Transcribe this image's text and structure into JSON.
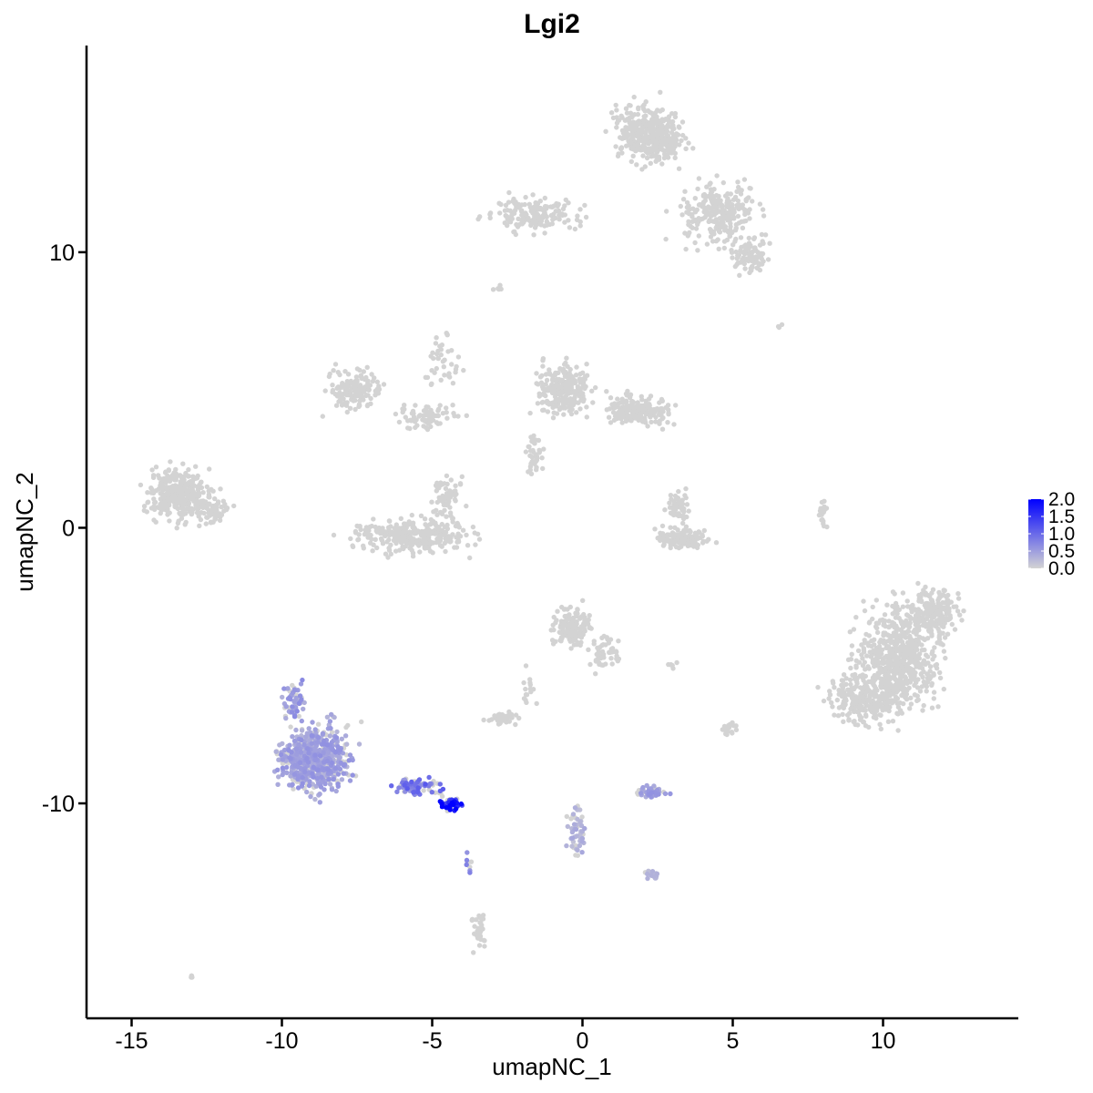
{
  "chart_data": {
    "type": "scatter",
    "title": "Lgi2",
    "xlabel": "umapNC_1",
    "ylabel": "umapNC_2",
    "xlim": [
      -16.5,
      14.5
    ],
    "ylim": [
      -17.8,
      17.5
    ],
    "xticks": [
      -15,
      -10,
      -5,
      0,
      5,
      10
    ],
    "xtick_labels": [
      "-15",
      "-10",
      "-5",
      "0",
      "5",
      "10"
    ],
    "yticks": [
      -10,
      0,
      10
    ],
    "ytick_labels": [
      "-10",
      "0",
      "10"
    ],
    "grid": false,
    "legend": {
      "position": "right",
      "type": "colorbar",
      "labels": [
        "2.0",
        "1.5",
        "1.0",
        "0.5",
        "0.0"
      ],
      "values": [
        2.0,
        1.5,
        1.0,
        0.5,
        0.0
      ],
      "low_color": "#d3d3d3",
      "high_color": "#0000ff"
    },
    "background_color": "#d3d3d3",
    "clusters": [
      {
        "cx": 2.2,
        "cy": 14.3,
        "sx": 1.0,
        "sy": 0.9,
        "n": 420,
        "expr": 0
      },
      {
        "cx": 4.6,
        "cy": 11.3,
        "sx": 1.3,
        "sy": 1.0,
        "n": 260,
        "expr": 0
      },
      {
        "cx": -1.6,
        "cy": 11.4,
        "sx": 1.3,
        "sy": 0.5,
        "n": 160,
        "expr": 0
      },
      {
        "cx": 5.6,
        "cy": 9.8,
        "sx": 0.5,
        "sy": 0.5,
        "n": 90,
        "expr": 0
      },
      {
        "cx": -7.6,
        "cy": 5.0,
        "sx": 0.8,
        "sy": 0.6,
        "n": 150,
        "expr": 0
      },
      {
        "cx": -5.2,
        "cy": 4.0,
        "sx": 0.9,
        "sy": 0.5,
        "n": 70,
        "expr": 0
      },
      {
        "cx": -4.6,
        "cy": 6.0,
        "sx": 0.5,
        "sy": 0.9,
        "n": 40,
        "expr": 0
      },
      {
        "cx": -5.6,
        "cy": -0.3,
        "sx": 1.7,
        "sy": 0.5,
        "n": 320,
        "expr": 0
      },
      {
        "cx": -4.5,
        "cy": 1.1,
        "sx": 0.4,
        "sy": 0.7,
        "n": 60,
        "expr": 0
      },
      {
        "cx": -0.6,
        "cy": 5.0,
        "sx": 0.8,
        "sy": 0.8,
        "n": 260,
        "expr": 0
      },
      {
        "cx": 1.9,
        "cy": 4.3,
        "sx": 1.0,
        "sy": 0.5,
        "n": 200,
        "expr": 0
      },
      {
        "cx": -1.6,
        "cy": 2.5,
        "sx": 0.3,
        "sy": 0.8,
        "n": 40,
        "expr": 0
      },
      {
        "cx": -13.4,
        "cy": 1.2,
        "sx": 0.9,
        "sy": 0.8,
        "n": 340,
        "expr": 0
      },
      {
        "cx": -12.3,
        "cy": 0.6,
        "sx": 0.5,
        "sy": 0.5,
        "n": 60,
        "expr": 0
      },
      {
        "cx": 3.3,
        "cy": -0.4,
        "sx": 0.8,
        "sy": 0.3,
        "n": 120,
        "expr": 0
      },
      {
        "cx": 3.2,
        "cy": 0.8,
        "sx": 0.3,
        "sy": 0.5,
        "n": 60,
        "expr": 0
      },
      {
        "cx": 8.0,
        "cy": 0.5,
        "sx": 0.15,
        "sy": 0.6,
        "n": 18,
        "expr": 0
      },
      {
        "cx": 10.5,
        "cy": -4.7,
        "sx": 1.2,
        "sy": 1.5,
        "n": 650,
        "expr": 0
      },
      {
        "cx": 9.4,
        "cy": -6.2,
        "sx": 1.0,
        "sy": 0.8,
        "n": 250,
        "expr": 0
      },
      {
        "cx": 11.6,
        "cy": -3.0,
        "sx": 0.8,
        "sy": 0.8,
        "n": 200,
        "expr": 0
      },
      {
        "cx": -0.4,
        "cy": -3.6,
        "sx": 0.6,
        "sy": 0.7,
        "n": 160,
        "expr": 0
      },
      {
        "cx": 0.7,
        "cy": -4.5,
        "sx": 0.4,
        "sy": 0.6,
        "n": 50,
        "expr": 0
      },
      {
        "cx": -2.6,
        "cy": -6.9,
        "sx": 0.4,
        "sy": 0.2,
        "n": 45,
        "expr": 0
      },
      {
        "cx": -1.8,
        "cy": -5.8,
        "sx": 0.2,
        "sy": 0.5,
        "n": 15,
        "expr": 0
      },
      {
        "cx": -8.9,
        "cy": -8.4,
        "sx": 1.0,
        "sy": 1.0,
        "n": 620,
        "expr": 0.45
      },
      {
        "cx": -9.6,
        "cy": -6.3,
        "sx": 0.3,
        "sy": 0.6,
        "n": 60,
        "expr": 0.5
      },
      {
        "cx": -5.5,
        "cy": -9.4,
        "sx": 0.6,
        "sy": 0.25,
        "n": 90,
        "expr": 0.85
      },
      {
        "cx": -4.4,
        "cy": -10.0,
        "sx": 0.35,
        "sy": 0.2,
        "n": 50,
        "expr": 1.7
      },
      {
        "cx": 2.3,
        "cy": -9.6,
        "sx": 0.45,
        "sy": 0.2,
        "n": 60,
        "expr": 0.45
      },
      {
        "cx": -0.2,
        "cy": -10.9,
        "sx": 0.25,
        "sy": 0.9,
        "n": 50,
        "expr": 0.3
      },
      {
        "cx": 2.3,
        "cy": -12.6,
        "sx": 0.2,
        "sy": 0.15,
        "n": 14,
        "expr": 0.25
      },
      {
        "cx": -3.4,
        "cy": -14.6,
        "sx": 0.2,
        "sy": 0.6,
        "n": 40,
        "expr": 0
      },
      {
        "cx": -3.8,
        "cy": -12.2,
        "sx": 0.1,
        "sy": 0.4,
        "n": 8,
        "expr": 0.6
      },
      {
        "cx": 4.9,
        "cy": -7.3,
        "sx": 0.3,
        "sy": 0.2,
        "n": 18,
        "expr": 0
      },
      {
        "cx": 3.0,
        "cy": -5.0,
        "sx": 0.15,
        "sy": 0.1,
        "n": 6,
        "expr": 0
      },
      {
        "cx": -13.0,
        "cy": -16.3,
        "sx": 0.1,
        "sy": 0.05,
        "n": 5,
        "expr": 0
      },
      {
        "cx": -2.7,
        "cy": 8.7,
        "sx": 0.2,
        "sy": 0.1,
        "n": 5,
        "expr": 0
      },
      {
        "cx": 6.6,
        "cy": 7.3,
        "sx": 0.1,
        "sy": 0.1,
        "n": 3,
        "expr": 0
      }
    ]
  }
}
